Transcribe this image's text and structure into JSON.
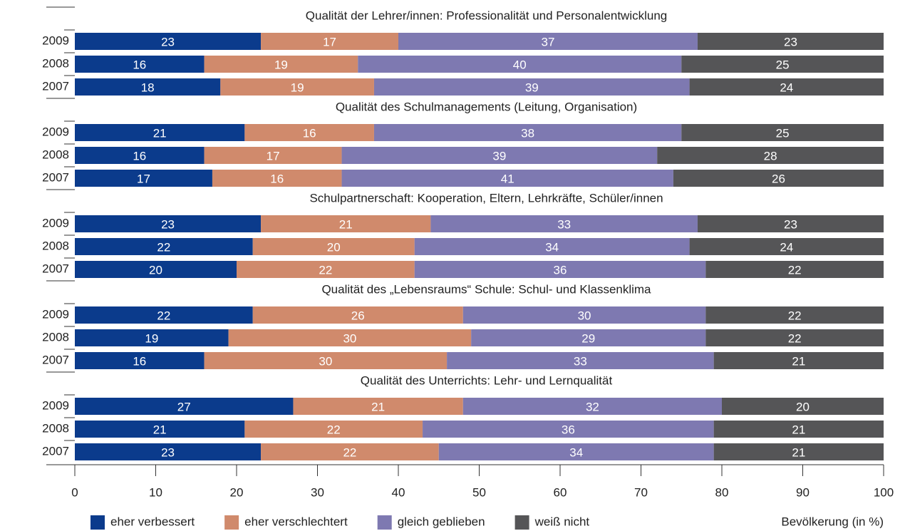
{
  "chart_data": {
    "type": "bar",
    "stacked": true,
    "orientation": "horizontal",
    "groups": [
      {
        "title": "Qualität der Lehrer/innen: Professionalität und Personalentwicklung",
        "categories": [
          "2009",
          "2008",
          "2007"
        ]
      },
      {
        "title": "Qualität des Schulmanagements (Leitung, Organisation)",
        "categories": [
          "2009",
          "2008",
          "2007"
        ]
      },
      {
        "title": "Schulpartnerschaft: Kooperation, Eltern, Lehrkräfte, Schüler/innen",
        "categories": [
          "2009",
          "2008",
          "2007"
        ]
      },
      {
        "title": "Qualität des „Lebensraums“ Schule: Schul- und Klassenklima",
        "categories": [
          "2009",
          "2008",
          "2007"
        ]
      },
      {
        "title": "Qualität des Unterrichts: Lehr- und Lernqualität",
        "categories": [
          "2009",
          "2008",
          "2007"
        ]
      }
    ],
    "series": [
      {
        "name": "eher verbessert",
        "color": "#0b3b8c",
        "values": [
          [
            23,
            16,
            18
          ],
          [
            21,
            16,
            17
          ],
          [
            23,
            22,
            20
          ],
          [
            22,
            19,
            16
          ],
          [
            27,
            21,
            23
          ]
        ]
      },
      {
        "name": "eher verschlechtert",
        "color": "#d08a6c",
        "values": [
          [
            17,
            19,
            19
          ],
          [
            16,
            17,
            16
          ],
          [
            21,
            20,
            22
          ],
          [
            26,
            30,
            30
          ],
          [
            21,
            22,
            22
          ]
        ]
      },
      {
        "name": "gleich geblieben",
        "color": "#7e79b1",
        "values": [
          [
            37,
            40,
            39
          ],
          [
            38,
            39,
            41
          ],
          [
            33,
            34,
            36
          ],
          [
            30,
            29,
            33
          ],
          [
            32,
            36,
            34
          ]
        ]
      },
      {
        "name": "weiß nicht",
        "color": "#555557",
        "values": [
          [
            23,
            25,
            24
          ],
          [
            25,
            28,
            26
          ],
          [
            23,
            24,
            22
          ],
          [
            22,
            22,
            21
          ],
          [
            20,
            21,
            21
          ]
        ]
      }
    ],
    "xlim": [
      0,
      100
    ],
    "xticks": [
      0,
      10,
      20,
      30,
      40,
      50,
      60,
      70,
      80,
      90,
      100
    ],
    "xlabel": "Bevölkerung (in %)"
  }
}
